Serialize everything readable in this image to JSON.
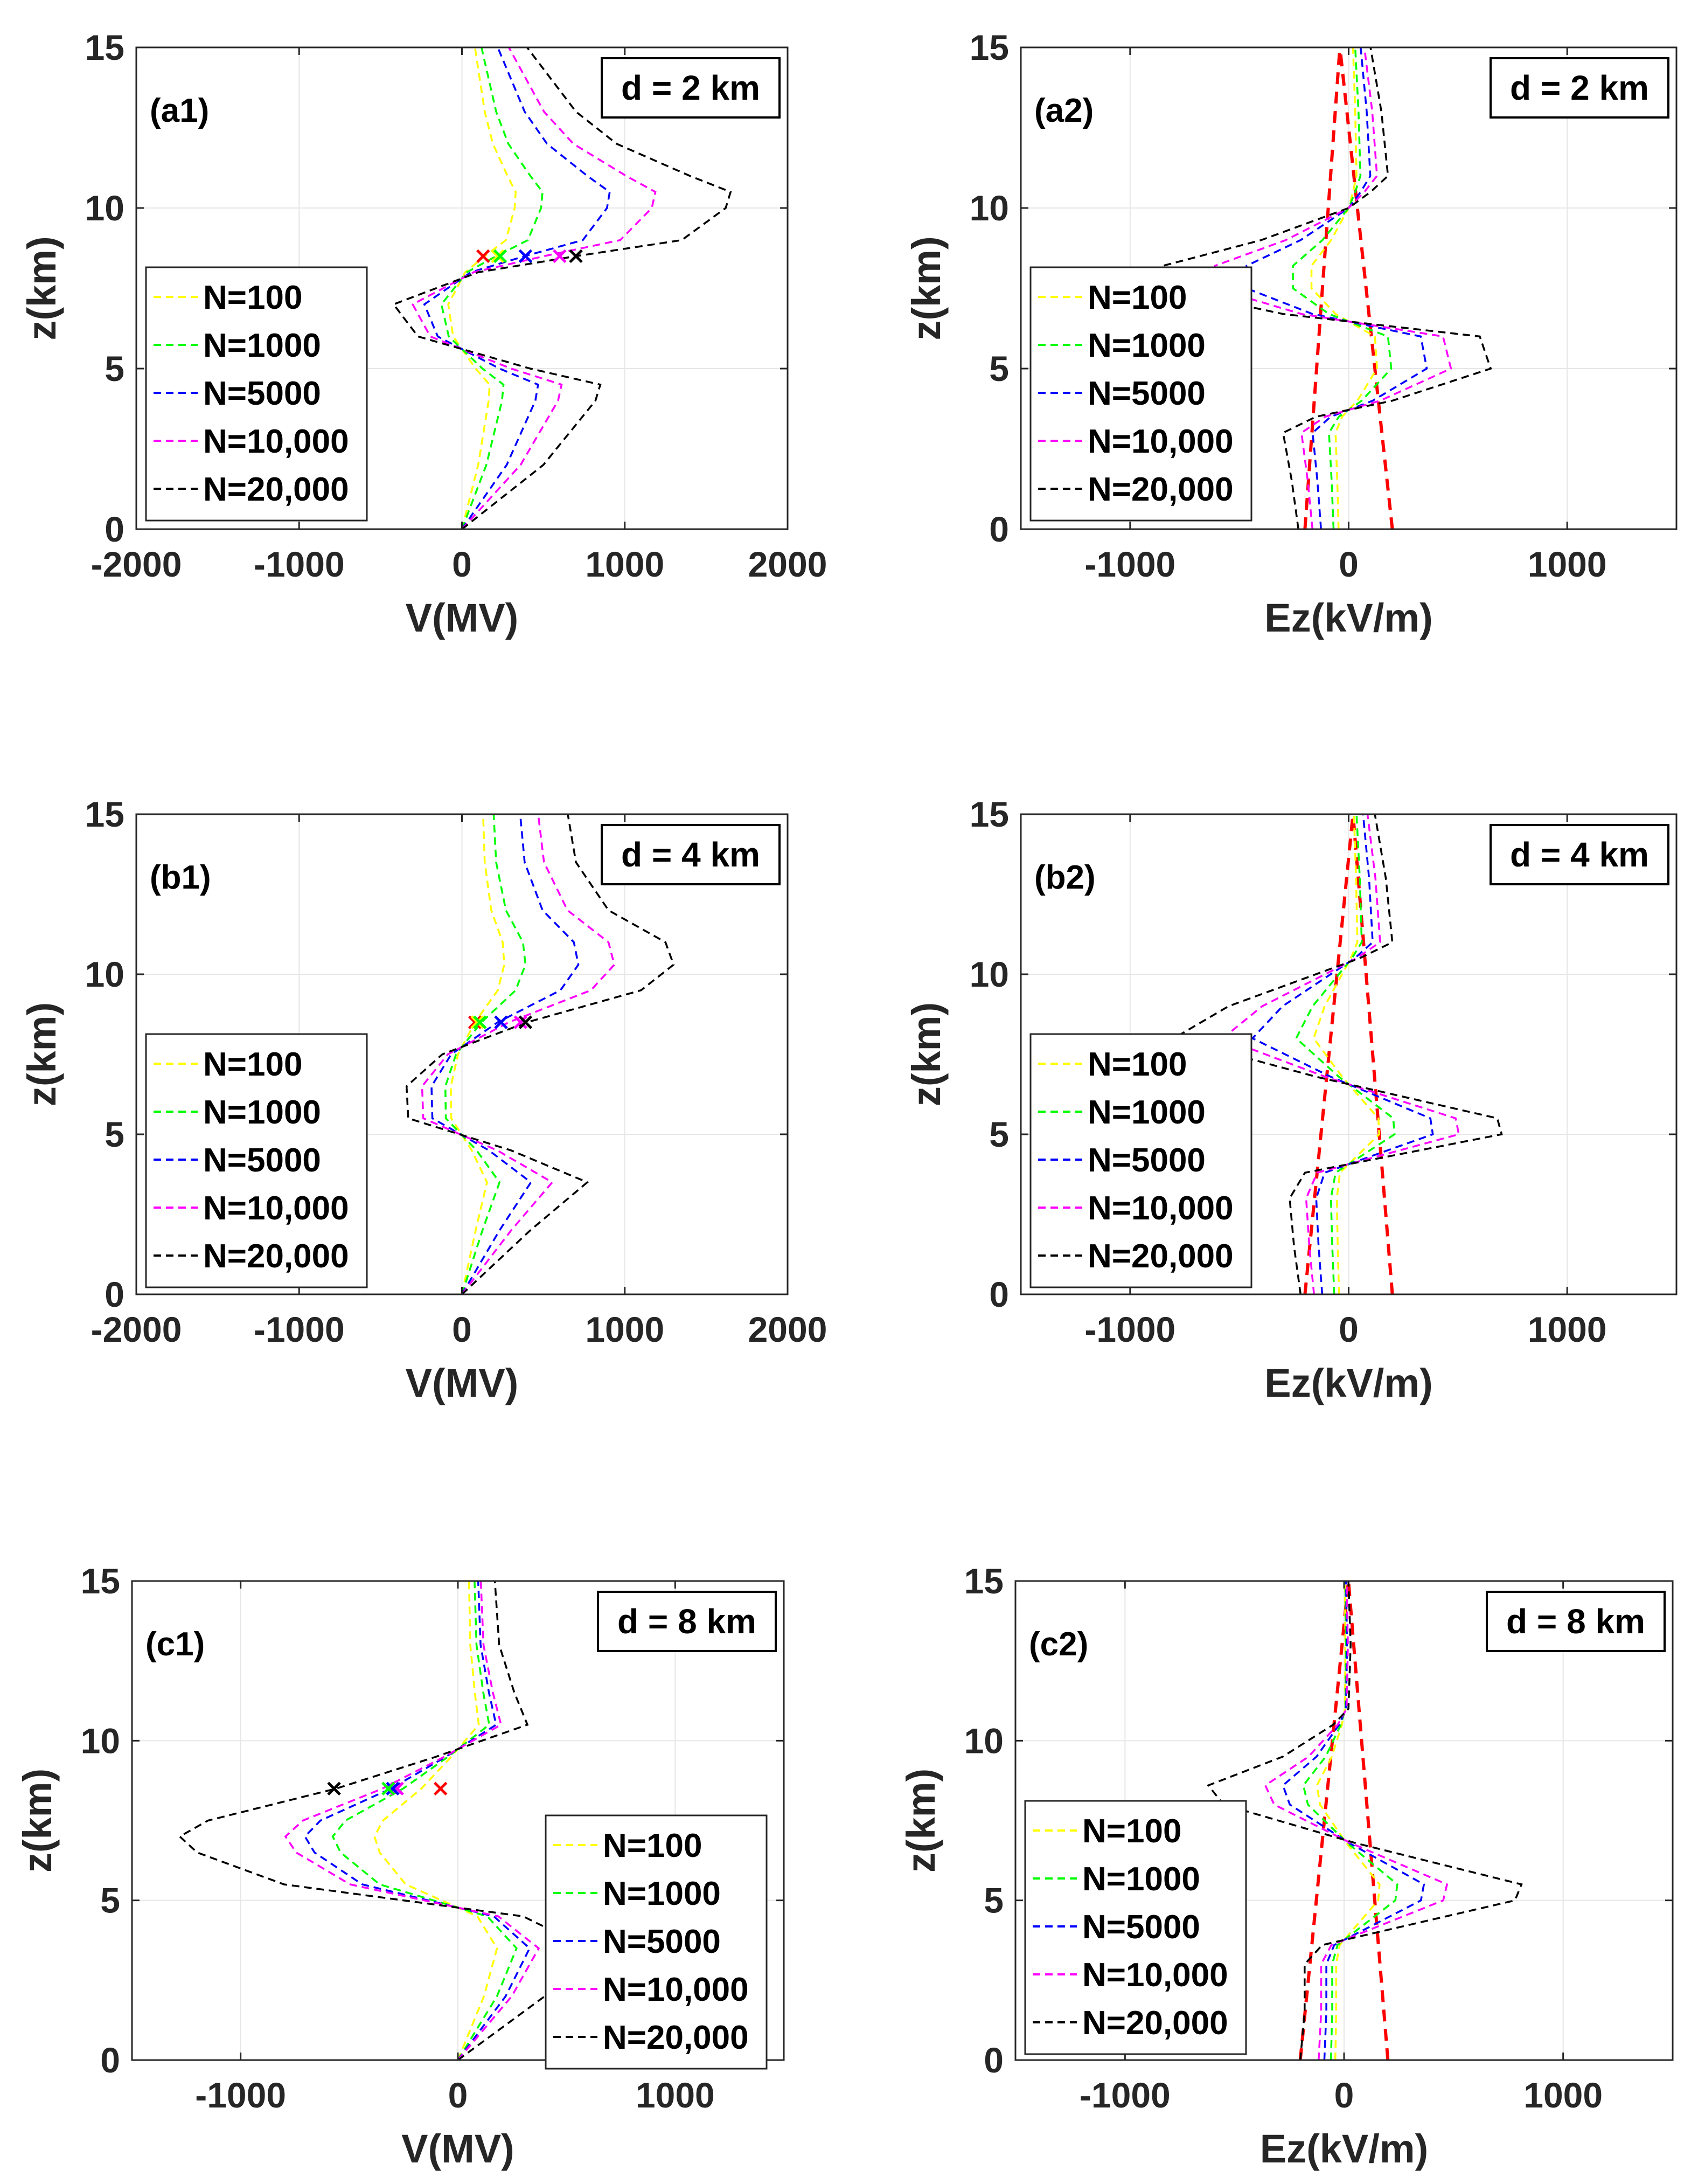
{
  "colors": {
    "N=100": "#ffff00",
    "N=1000": "#00ff00",
    "N=5000": "#0000ff",
    "N=10,000": "#ff00ff",
    "N=20,000": "#000000",
    "threshold": "#ff0000",
    "axis": "#262626",
    "grid": "#e6e6e6"
  },
  "chart_data": [
    {
      "id": "a1",
      "type": "line",
      "panel_label": "(a1)",
      "d_label": "d = 2 km",
      "xlabel": "V(MV)",
      "ylabel": "z(km)",
      "xlim": [
        -2000,
        2000
      ],
      "ylim": [
        0,
        15
      ],
      "xticks": [
        -2000,
        -1000,
        0,
        1000,
        2000
      ],
      "xticklabels": [
        "-2000",
        "-1000",
        "0",
        "1000",
        "2000"
      ],
      "yticks": [
        0,
        5,
        10,
        15
      ],
      "yticklabels": [
        "0",
        "5",
        "10",
        "15"
      ],
      "legend_position": "left",
      "series": [
        {
          "name": "N=100",
          "amp": 0.2
        },
        {
          "name": "N=1000",
          "amp": 0.3
        },
        {
          "name": "N=5000",
          "amp": 0.55
        },
        {
          "name": "N=10,000",
          "amp": 0.72
        },
        {
          "name": "N=20,000",
          "amp": 1.0
        }
      ],
      "profile": {
        "z": [
          0,
          2,
          4,
          4.5,
          5,
          6,
          7,
          8,
          8.5,
          9,
          10,
          10.5,
          11,
          12,
          13,
          15
        ],
        "v": [
          0,
          500,
          820,
          850,
          420,
          -270,
          -420,
          100,
          700,
          1350,
          1620,
          1650,
          1400,
          950,
          700,
          400
        ]
      },
      "markers": [
        {
          "z": 8.5,
          "x": 130,
          "color": "threshold"
        },
        {
          "z": 8.5,
          "x": 220,
          "color": "N=100"
        },
        {
          "z": 8.5,
          "x": 235,
          "color": "N=1000"
        },
        {
          "z": 8.5,
          "x": 390,
          "color": "N=5000"
        },
        {
          "z": 8.5,
          "x": 600,
          "color": "N=10,000"
        },
        {
          "z": 8.5,
          "x": 700,
          "color": "N=20,000"
        }
      ]
    },
    {
      "id": "a2",
      "type": "line",
      "panel_label": "(a2)",
      "d_label": "d = 2 km",
      "xlabel": "Ez(kV/m)",
      "ylabel": "z(km)",
      "xlim": [
        -1500,
        1500
      ],
      "ylim": [
        0,
        15
      ],
      "xticks": [
        -1000,
        0,
        1000
      ],
      "xticklabels": [
        "-1000",
        "0",
        "1000"
      ],
      "yticks": [
        0,
        5,
        10,
        15
      ],
      "yticklabels": [
        "0",
        "5",
        "10",
        "15"
      ],
      "legend_position": "left",
      "series": [
        {
          "name": "N=100",
          "amp": 0.2
        },
        {
          "name": "N=1000",
          "amp": 0.3
        },
        {
          "name": "N=5000",
          "amp": 0.55
        },
        {
          "name": "N=10,000",
          "amp": 0.72
        },
        {
          "name": "N=20,000",
          "amp": 1.0
        }
      ],
      "profile": {
        "z": [
          0,
          1.5,
          3,
          3.5,
          4,
          5,
          6,
          6.7,
          7.5,
          8.2,
          9,
          10,
          10.5,
          11,
          13,
          15
        ],
        "v": [
          -230,
          -260,
          -300,
          -150,
          200,
          650,
          600,
          -300,
          -850,
          -850,
          -400,
          0,
          100,
          180,
          150,
          100
        ]
      },
      "threshold_lines": [
        {
          "name": "threshold-positive",
          "x0": 200,
          "x15": -40
        },
        {
          "name": "threshold-negative",
          "x0": -200,
          "x15": -40
        }
      ]
    },
    {
      "id": "b1",
      "type": "line",
      "panel_label": "(b1)",
      "d_label": "d = 4 km",
      "xlabel": "V(MV)",
      "ylabel": "z(km)",
      "xlim": [
        -2000,
        2000
      ],
      "ylim": [
        0,
        15
      ],
      "xticks": [
        -2000,
        -1000,
        0,
        1000,
        2000
      ],
      "xticklabels": [
        "-2000",
        "-1000",
        "0",
        "1000",
        "2000"
      ],
      "yticks": [
        0,
        5,
        10,
        15
      ],
      "yticklabels": [
        "0",
        "5",
        "10",
        "15"
      ],
      "legend_position": "left",
      "series": [
        {
          "name": "N=100",
          "amp": 0.2
        },
        {
          "name": "N=1000",
          "amp": 0.3
        },
        {
          "name": "N=5000",
          "amp": 0.55
        },
        {
          "name": "N=10,000",
          "amp": 0.72
        },
        {
          "name": "N=20,000",
          "amp": 1.0
        }
      ],
      "profile": {
        "z": [
          0,
          2,
          3.5,
          4.5,
          5.5,
          6.5,
          7.5,
          8.5,
          9.5,
          10.3,
          11,
          12,
          13.5,
          15
        ],
        "v": [
          0,
          420,
          770,
          300,
          -330,
          -340,
          -120,
          400,
          1100,
          1300,
          1250,
          900,
          700,
          650
        ]
      },
      "markers": [
        {
          "z": 8.5,
          "x": 80,
          "color": "threshold"
        },
        {
          "z": 8.5,
          "x": 95,
          "color": "N=100"
        },
        {
          "z": 8.5,
          "x": 110,
          "color": "N=1000"
        },
        {
          "z": 8.5,
          "x": 240,
          "color": "N=5000"
        },
        {
          "z": 8.5,
          "x": 360,
          "color": "N=10,000"
        },
        {
          "z": 8.5,
          "x": 390,
          "color": "N=20,000"
        }
      ]
    },
    {
      "id": "b2",
      "type": "line",
      "panel_label": "(b2)",
      "d_label": "d = 4 km",
      "xlabel": "Ez(kV/m)",
      "ylabel": "z(km)",
      "xlim": [
        -1500,
        1500
      ],
      "ylim": [
        0,
        15
      ],
      "xticks": [
        -1000,
        0,
        1000
      ],
      "xticklabels": [
        "-1000",
        "0",
        "1000"
      ],
      "yticks": [
        0,
        5,
        10,
        15
      ],
      "yticklabels": [
        "0",
        "5",
        "10",
        "15"
      ],
      "legend_position": "left",
      "series": [
        {
          "name": "N=100",
          "amp": 0.2
        },
        {
          "name": "N=1000",
          "amp": 0.3
        },
        {
          "name": "N=5000",
          "amp": 0.55
        },
        {
          "name": "N=10,000",
          "amp": 0.72
        },
        {
          "name": "N=20,000",
          "amp": 1.0
        }
      ],
      "profile": {
        "z": [
          0,
          1.5,
          3,
          3.8,
          5,
          5.5,
          6.8,
          8,
          9,
          10.5,
          11,
          13,
          15
        ],
        "v": [
          -220,
          -250,
          -270,
          -200,
          700,
          680,
          -150,
          -800,
          -550,
          50,
          200,
          170,
          120
        ]
      },
      "threshold_lines": [
        {
          "name": "threshold-positive",
          "x0": 200,
          "x15": 20
        },
        {
          "name": "threshold-negative",
          "x0": -200,
          "x15": 20
        }
      ]
    },
    {
      "id": "c1",
      "type": "line",
      "panel_label": "(c1)",
      "d_label": "d = 8 km",
      "xlabel": "V(MV)",
      "ylabel": "z(km)",
      "xlim": [
        -1500,
        1500
      ],
      "ylim": [
        0,
        15
      ],
      "xticks": [
        -1000,
        0,
        1000
      ],
      "xticklabels": [
        "-1000",
        "0",
        "1000"
      ],
      "yticks": [
        0,
        5,
        10,
        15
      ],
      "yticklabels": [
        "0",
        "5",
        "10",
        "15"
      ],
      "legend_position": "right",
      "series": [
        {
          "name": "N=100",
          "amp": 0.3
        },
        {
          "name": "N=1000",
          "amp": 0.45
        },
        {
          "name": "N=5000",
          "amp": 0.55
        },
        {
          "name": "N=10,000",
          "amp": 0.62
        },
        {
          "name": "N=20,000",
          "amp": 1.0
        }
      ],
      "profile": {
        "z": [
          0,
          2,
          3.5,
          4.5,
          5.5,
          6.5,
          7,
          7.5,
          8.5,
          9.5,
          10.5,
          11.5,
          13,
          15
        ],
        "v": [
          0,
          400,
          600,
          300,
          -800,
          -1200,
          -1280,
          -1150,
          -560,
          -100,
          320,
          260,
          190,
          170
        ]
      },
      "markers": [
        {
          "z": 8.5,
          "x": -80,
          "color": "threshold"
        },
        {
          "z": 8.5,
          "x": -280,
          "color": "N=10,000"
        },
        {
          "z": 8.5,
          "x": -300,
          "color": "N=5000"
        },
        {
          "z": 8.5,
          "x": -320,
          "color": "N=1000"
        },
        {
          "z": 8.5,
          "x": -570,
          "color": "N=20,000"
        }
      ]
    },
    {
      "id": "c2",
      "type": "line",
      "panel_label": "(c2)",
      "d_label": "d = 8 km",
      "xlabel": "Ez(kV/m)",
      "ylabel": "z(km)",
      "xlim": [
        -1500,
        1500
      ],
      "ylim": [
        0,
        15
      ],
      "xticks": [
        -1000,
        0,
        1000
      ],
      "xticklabels": [
        "-1000",
        "0",
        "1000"
      ],
      "yticks": [
        0,
        5,
        10,
        15
      ],
      "yticklabels": [
        "0",
        "5",
        "10",
        "15"
      ],
      "legend_position": "left",
      "series": [
        {
          "name": "N=100",
          "amp": 0.2
        },
        {
          "name": "N=1000",
          "amp": 0.3
        },
        {
          "name": "N=5000",
          "amp": 0.45
        },
        {
          "name": "N=10,000",
          "amp": 0.58
        },
        {
          "name": "N=20,000",
          "amp": 1.0
        }
      ],
      "profile": {
        "z": [
          0,
          1.5,
          3,
          3.6,
          5,
          5.5,
          6.8,
          8,
          8.6,
          9.5,
          10.5,
          11,
          13,
          15
        ],
        "v": [
          -200,
          -180,
          -180,
          -100,
          780,
          810,
          50,
          -550,
          -620,
          -280,
          -50,
          20,
          30,
          20
        ]
      },
      "threshold_lines": [
        {
          "name": "threshold-positive",
          "x0": 200,
          "x15": 20
        },
        {
          "name": "threshold-negative",
          "x0": -200,
          "x15": 20
        }
      ]
    }
  ]
}
